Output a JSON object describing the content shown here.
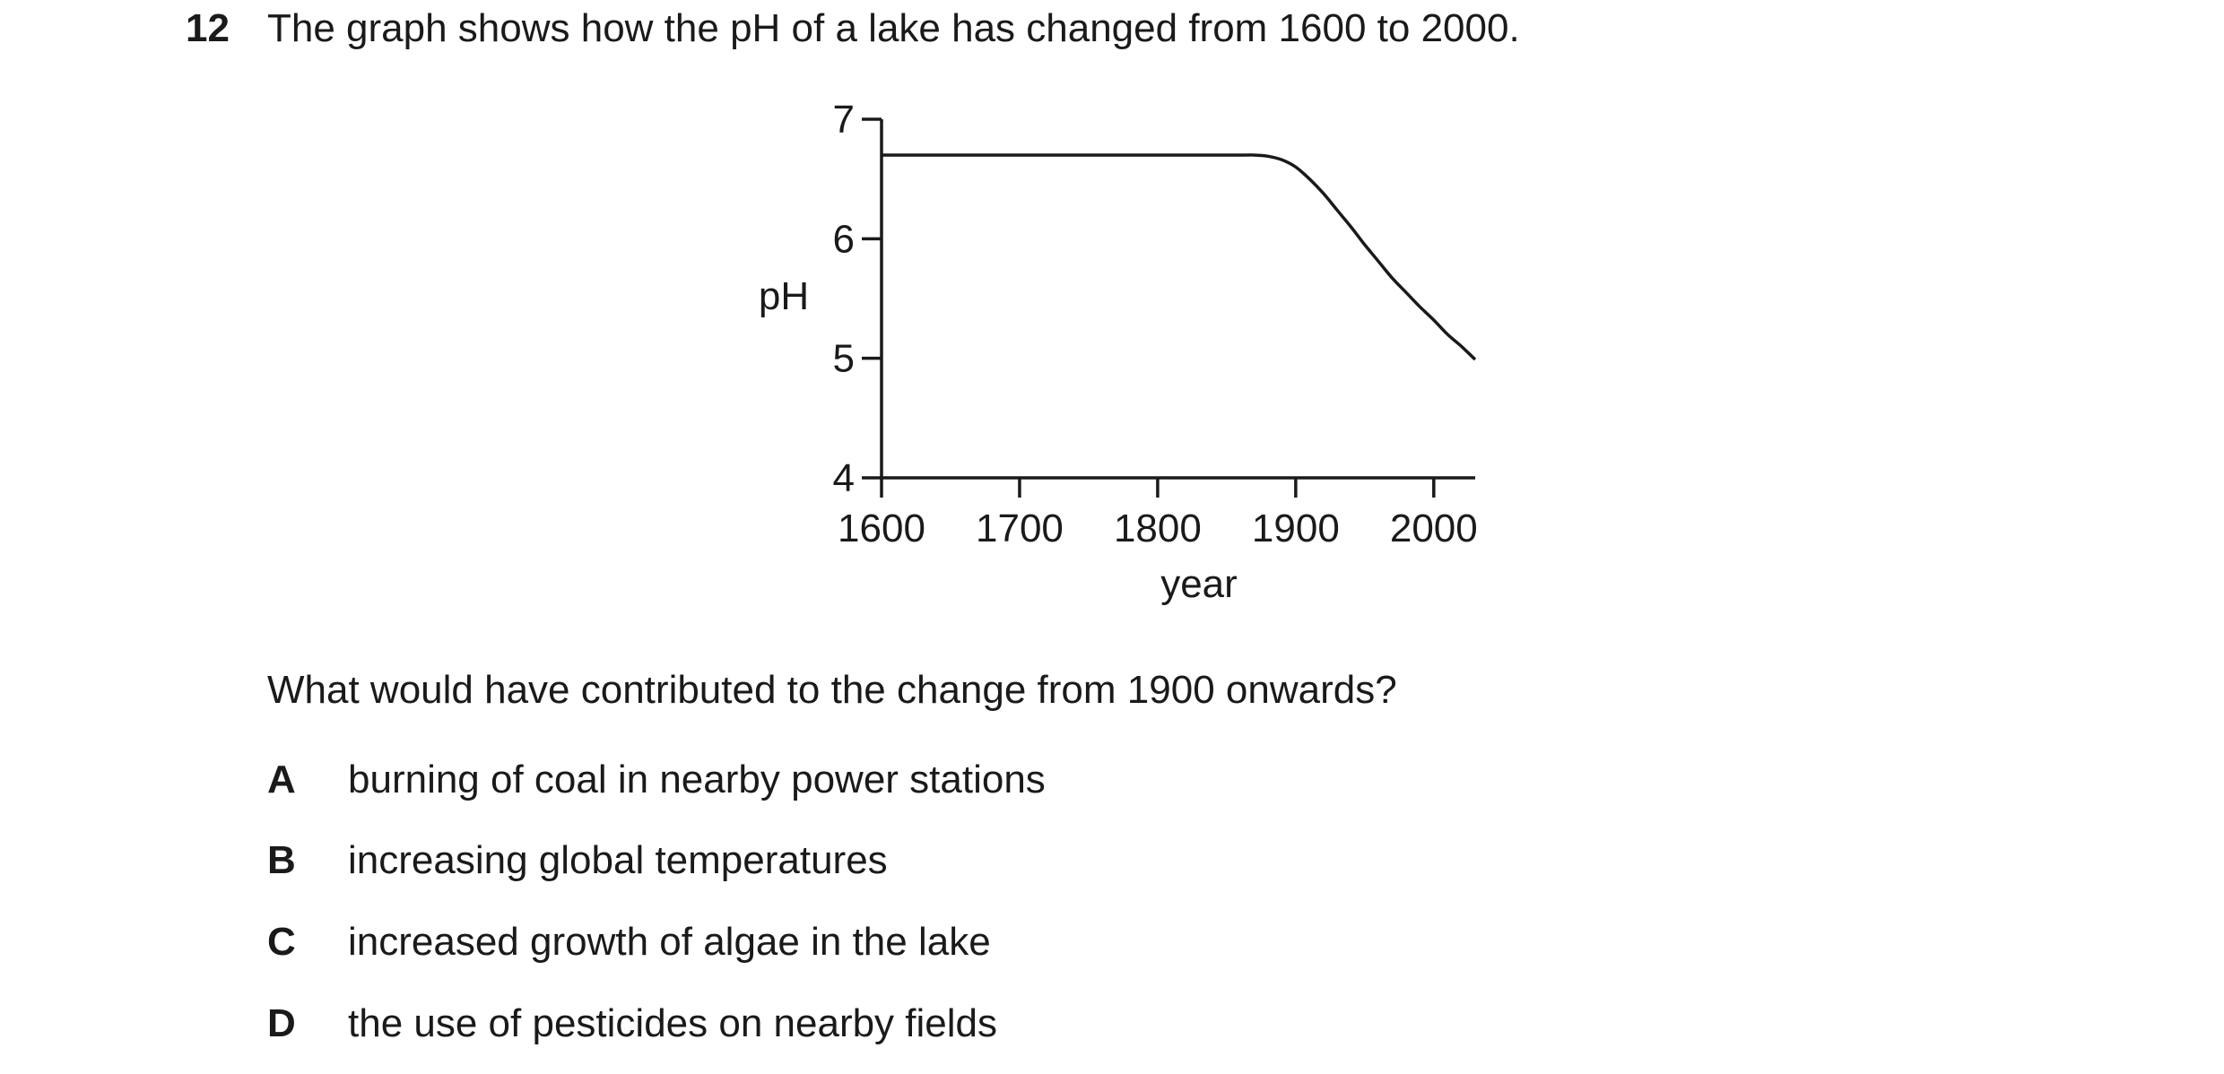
{
  "question": {
    "number": "12",
    "text": "The graph shows how the pH of a lake has changed from 1600 to 2000.",
    "prompt": "What would have contributed to the change from 1900 onwards?",
    "options": [
      {
        "letter": "A",
        "text": "burning of coal in nearby power stations"
      },
      {
        "letter": "B",
        "text": "increasing global temperatures"
      },
      {
        "letter": "C",
        "text": "increased growth of algae in the lake"
      },
      {
        "letter": "D",
        "text": "the use of pesticides on nearby fields"
      }
    ]
  },
  "chart_data": {
    "type": "line",
    "title": "",
    "xlabel": "year",
    "ylabel": "pH",
    "xlim": [
      1600,
      2030
    ],
    "ylim": [
      4,
      7
    ],
    "xticks": [
      1600,
      1700,
      1800,
      1900,
      2000
    ],
    "yticks": [
      4,
      5,
      6,
      7
    ],
    "grid": false,
    "series": [
      {
        "values_x": [
          1600,
          1700,
          1800,
          1860,
          1870,
          1880,
          1890,
          1900,
          1910,
          1920,
          1930,
          1940,
          1950,
          1960,
          1970,
          1980,
          1990,
          2000,
          2010,
          2020,
          2030
        ],
        "values_y": [
          6.7,
          6.7,
          6.7,
          6.7,
          6.7,
          6.69,
          6.66,
          6.6,
          6.5,
          6.38,
          6.24,
          6.1,
          5.95,
          5.81,
          5.67,
          5.55,
          5.43,
          5.32,
          5.2,
          5.1,
          4.99
        ]
      }
    ]
  }
}
